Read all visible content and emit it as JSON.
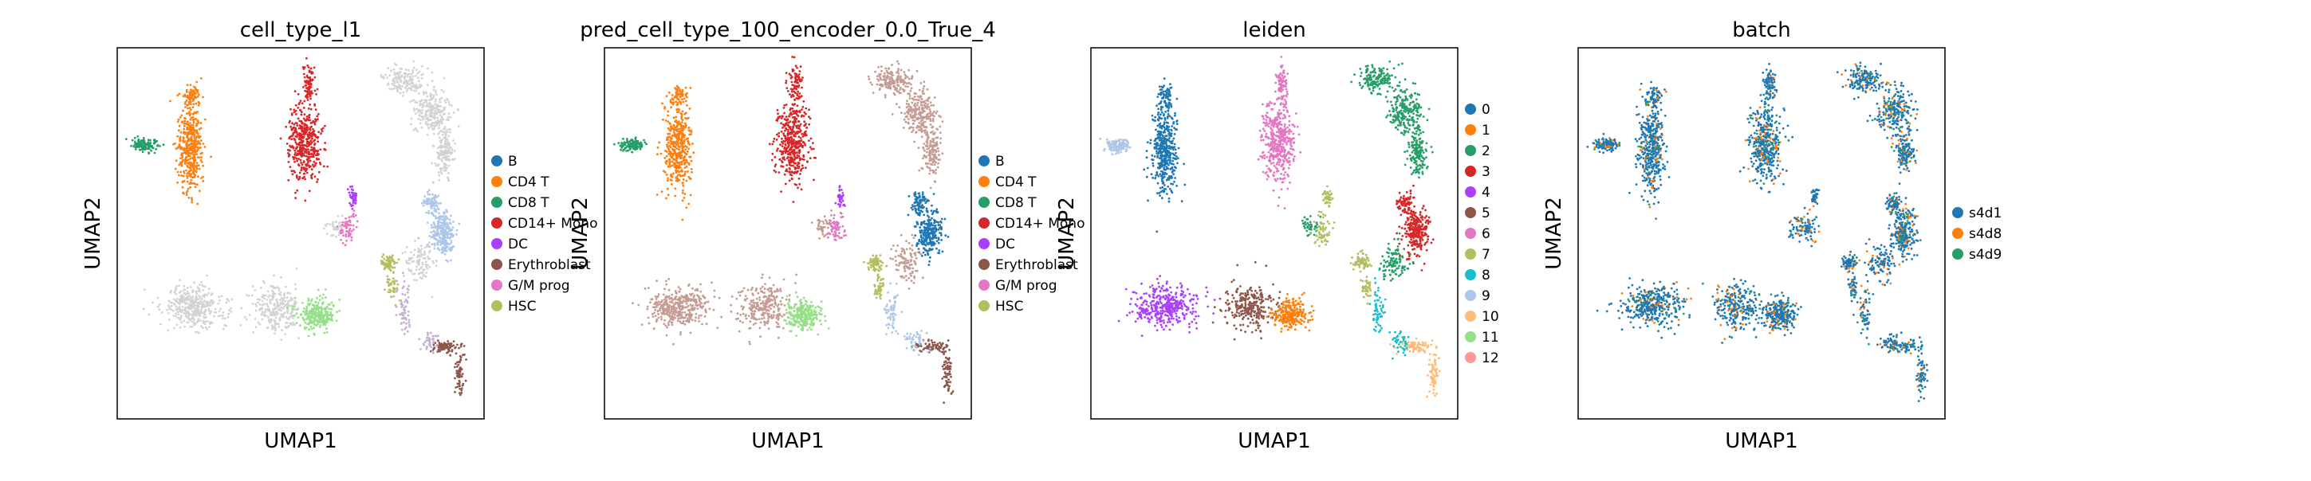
{
  "figure": {
    "panels": [
      {
        "id": "cell_type_l1",
        "title": "cell_type_l1",
        "xlabel": "UMAP1",
        "ylabel": "UMAP2"
      },
      {
        "id": "pred",
        "title": "pred_cell_type_100_encoder_0.0_True_4",
        "xlabel": "UMAP1",
        "ylabel": "UMAP2"
      },
      {
        "id": "leiden",
        "title": "leiden",
        "xlabel": "UMAP1",
        "ylabel": "UMAP2"
      },
      {
        "id": "batch",
        "title": "batch",
        "xlabel": "UMAP1",
        "ylabel": "UMAP2"
      }
    ]
  },
  "chart_data": [
    {
      "type": "scatter",
      "title": "cell_type_l1",
      "xlabel": "UMAP1",
      "ylabel": "UMAP2",
      "ticks": "none",
      "legend_placement": "right",
      "legend": [
        {
          "label": "B",
          "color": "#1f77b4"
        },
        {
          "label": "CD4 T",
          "color": "#ff7f0e"
        },
        {
          "label": "CD8 T",
          "color": "#279e68"
        },
        {
          "label": "CD14+ Mono",
          "color": "#d62728"
        },
        {
          "label": "DC",
          "color": "#aa40fc"
        },
        {
          "label": "Erythroblast",
          "color": "#8c564b"
        },
        {
          "label": "G/M prog",
          "color": "#e377c2"
        },
        {
          "label": "HSC",
          "color": "#b5bd61"
        }
      ]
    },
    {
      "type": "scatter",
      "title": "pred_cell_type_100_encoder_0.0_True_4",
      "xlabel": "UMAP1",
      "ylabel": "UMAP2",
      "ticks": "none",
      "legend_placement": "right",
      "legend": [
        {
          "label": "B",
          "color": "#1f77b4"
        },
        {
          "label": "CD4 T",
          "color": "#ff7f0e"
        },
        {
          "label": "CD8 T",
          "color": "#279e68"
        },
        {
          "label": "CD14+ Mono",
          "color": "#d62728"
        },
        {
          "label": "DC",
          "color": "#aa40fc"
        },
        {
          "label": "Erythroblast",
          "color": "#8c564b"
        },
        {
          "label": "G/M prog",
          "color": "#e377c2"
        },
        {
          "label": "HSC",
          "color": "#b5bd61"
        }
      ]
    },
    {
      "type": "scatter",
      "title": "leiden",
      "xlabel": "UMAP1",
      "ylabel": "UMAP2",
      "ticks": "none",
      "legend_placement": "right",
      "legend": [
        {
          "label": "0",
          "color": "#1f77b4"
        },
        {
          "label": "1",
          "color": "#ff7f0e"
        },
        {
          "label": "2",
          "color": "#279e68"
        },
        {
          "label": "3",
          "color": "#d62728"
        },
        {
          "label": "4",
          "color": "#aa40fc"
        },
        {
          "label": "5",
          "color": "#8c564b"
        },
        {
          "label": "6",
          "color": "#e377c2"
        },
        {
          "label": "7",
          "color": "#b5bd61"
        },
        {
          "label": "8",
          "color": "#17becf"
        },
        {
          "label": "9",
          "color": "#aec7e8"
        },
        {
          "label": "10",
          "color": "#ffbb78"
        },
        {
          "label": "11",
          "color": "#98df8a"
        },
        {
          "label": "12",
          "color": "#ff9896"
        }
      ]
    },
    {
      "type": "scatter",
      "title": "batch",
      "xlabel": "UMAP1",
      "ylabel": "UMAP2",
      "ticks": "none",
      "legend_placement": "right",
      "legend": [
        {
          "label": "s4d1",
          "color": "#1f77b4"
        },
        {
          "label": "s4d8",
          "color": "#ff7f0e"
        },
        {
          "label": "s4d9",
          "color": "#279e68"
        }
      ]
    }
  ]
}
